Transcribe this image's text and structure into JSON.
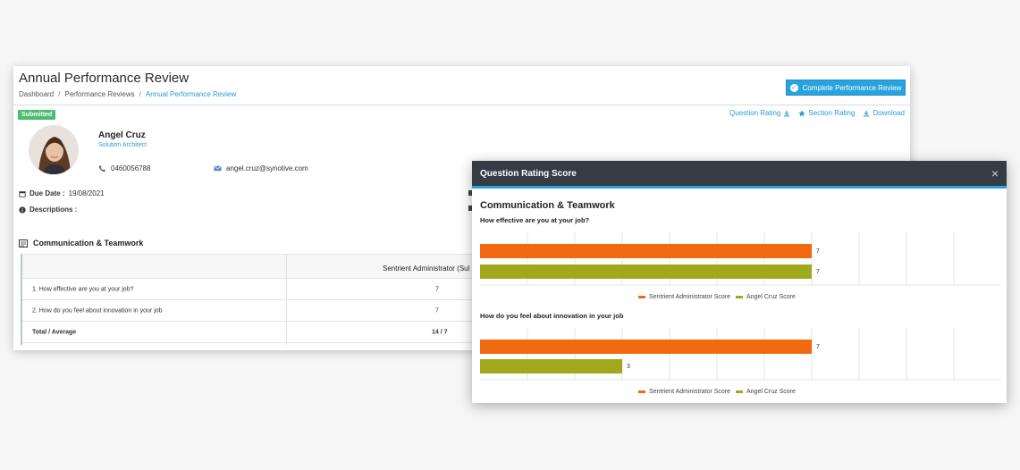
{
  "header": {
    "title": "Annual Performance Review",
    "breadcrumb": [
      "Dashboard",
      "Performance Reviews",
      "Annual Performance Review"
    ],
    "complete_button": "Complete Performance Review"
  },
  "status_badge": "Submitted",
  "actions": {
    "question_rating": "Question Rating",
    "section_rating": "Section Rating",
    "download": "Download"
  },
  "employee": {
    "name": "Angel Cruz",
    "role": "Solution Architect",
    "phone": "0460056788",
    "email": "angel.cruz@synotive.com"
  },
  "details": {
    "due_label": "Due Date :",
    "due_value": "19/08/2021",
    "descriptions_label": "Descriptions :"
  },
  "section": {
    "title": "Communication & Teamwork",
    "table": {
      "header": "Sentrient Administrator (Sul",
      "rows": [
        {
          "question": "1. How effective are you at your job?",
          "value": "7"
        },
        {
          "question": "2. How do you feel about innovation in your job",
          "value": "7"
        }
      ],
      "total_label": "Total / Average",
      "total_value": "14 / 7"
    }
  },
  "modal": {
    "title": "Question Rating Score",
    "close": "×",
    "section_title": "Communication & Teamwork",
    "colors": {
      "admin": "#f26a10",
      "angel": "#a2a81c"
    }
  },
  "chart_data": [
    {
      "type": "bar",
      "orientation": "horizontal",
      "title": "How effective are you at your job?",
      "series": [
        {
          "name": "Sentrient Administrator Score",
          "values": [
            7
          ]
        },
        {
          "name": "Angel Cruz Score",
          "values": [
            7
          ]
        }
      ],
      "xlim": [
        0,
        10
      ],
      "legend": "bottom",
      "grid": true
    },
    {
      "type": "bar",
      "orientation": "horizontal",
      "title": "How do you feel about innovation in your job",
      "series": [
        {
          "name": "Sentrient Administrator Score",
          "values": [
            7
          ]
        },
        {
          "name": "Angel Cruz Score",
          "values": [
            3
          ]
        }
      ],
      "xlim": [
        0,
        10
      ],
      "legend": "bottom",
      "grid": true
    }
  ]
}
